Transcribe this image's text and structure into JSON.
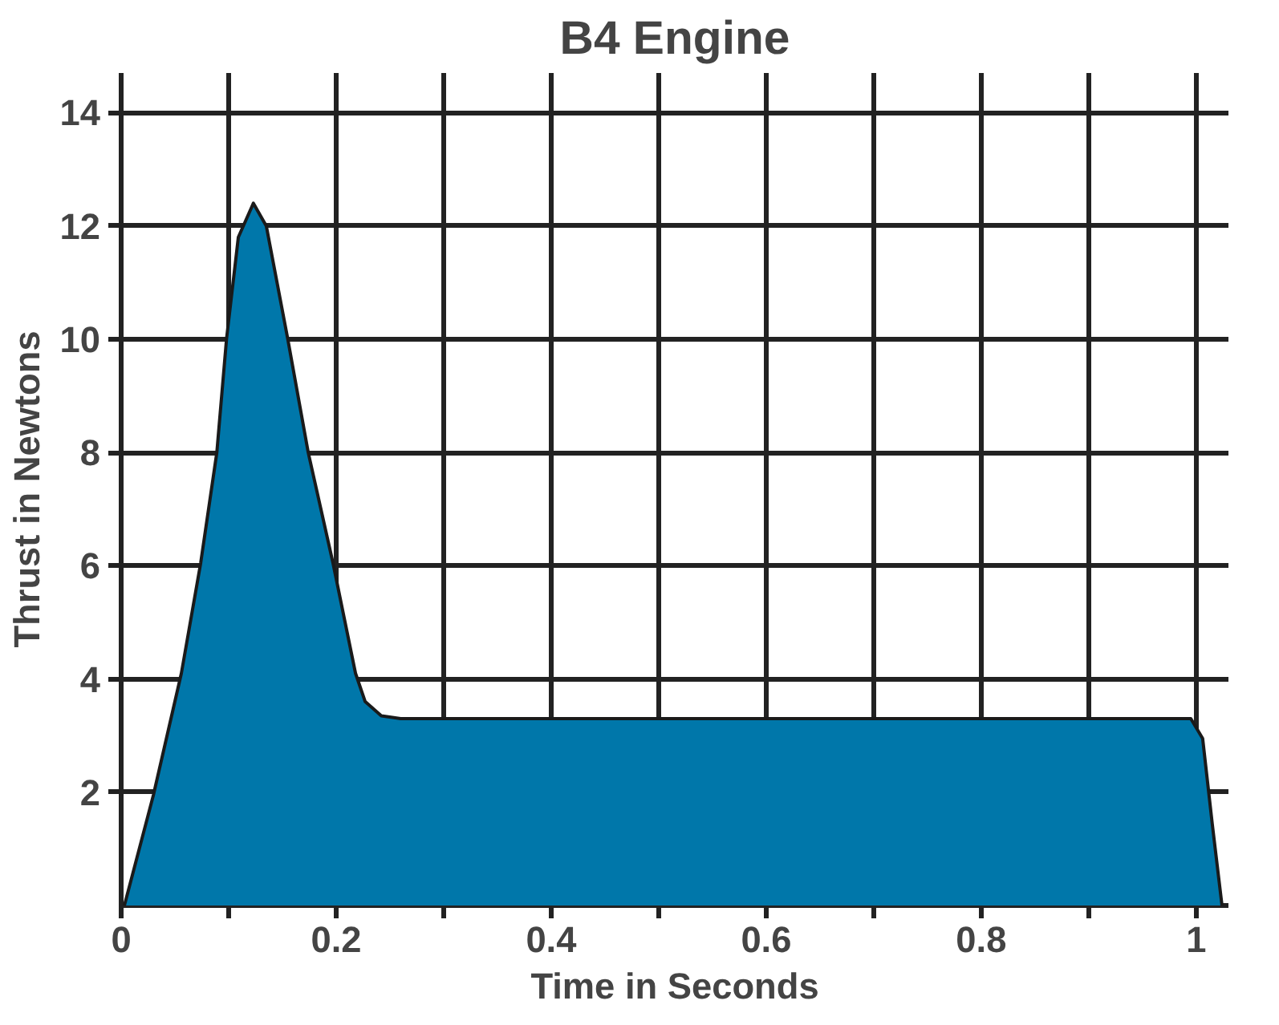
{
  "chart_data": {
    "type": "area",
    "title": "B4 Engine",
    "xlabel": "Time in Seconds",
    "ylabel": "Thrust in Newtons",
    "x": [
      0.003,
      0.03,
      0.056,
      0.074,
      0.089,
      0.098,
      0.109,
      0.123,
      0.135,
      0.155,
      0.174,
      0.197,
      0.218,
      0.227,
      0.242,
      0.26,
      0.995,
      1.006,
      1.015,
      1.024
    ],
    "series": [
      {
        "color": "#0077aa",
        "values": [
          0,
          1.95,
          4.1,
          6.05,
          8,
          10,
          11.8,
          12.4,
          12,
          10,
          8,
          6.05,
          4.1,
          3.6,
          3.35,
          3.3,
          3.3,
          2.95,
          1.43,
          0
        ]
      }
    ],
    "xlim": [
      0,
      1.03
    ],
    "ylim": [
      0,
      14.7
    ],
    "xticks": [
      0,
      {
        "value": 0.1,
        "label": null
      },
      {
        "value": 0.2,
        "label": "0.2"
      },
      {
        "value": 0.3,
        "label": null
      },
      {
        "value": 0.4,
        "label": "0.4"
      },
      {
        "value": 0.5,
        "label": null
      },
      {
        "value": 0.6,
        "label": "0.6"
      },
      {
        "value": 0.7,
        "label": null
      },
      {
        "value": 0.8,
        "label": "0.8"
      },
      {
        "value": 0.9,
        "label": null
      },
      1
    ],
    "yticks": [
      2,
      4,
      6,
      8,
      10,
      12,
      14
    ],
    "grid": true
  }
}
